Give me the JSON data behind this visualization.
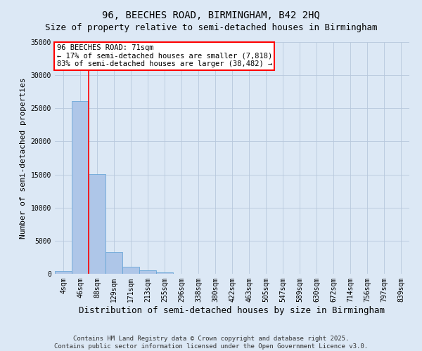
{
  "title_line1": "96, BEECHES ROAD, BIRMINGHAM, B42 2HQ",
  "title_line2": "Size of property relative to semi-detached houses in Birmingham",
  "xlabel": "Distribution of semi-detached houses by size in Birmingham",
  "ylabel": "Number of semi-detached properties",
  "categories": [
    "4sqm",
    "46sqm",
    "88sqm",
    "129sqm",
    "171sqm",
    "213sqm",
    "255sqm",
    "296sqm",
    "338sqm",
    "380sqm",
    "422sqm",
    "463sqm",
    "505sqm",
    "547sqm",
    "589sqm",
    "630sqm",
    "672sqm",
    "714sqm",
    "756sqm",
    "797sqm",
    "839sqm"
  ],
  "values": [
    400,
    26100,
    15100,
    3300,
    1100,
    500,
    200,
    50,
    10,
    5,
    5,
    2,
    2,
    2,
    1,
    1,
    1,
    1,
    1,
    0,
    0
  ],
  "bar_color": "#aec6e8",
  "bar_edge_color": "#5a9fd4",
  "red_line_x": 1,
  "property_label": "96 BEECHES ROAD: 71sqm",
  "smaller_label": "← 17% of semi-detached houses are smaller (7,818)",
  "larger_label": "83% of semi-detached houses are larger (38,482) →",
  "ylim": [
    0,
    35000
  ],
  "yticks": [
    0,
    5000,
    10000,
    15000,
    20000,
    25000,
    30000,
    35000
  ],
  "footer_line1": "Contains HM Land Registry data © Crown copyright and database right 2025.",
  "footer_line2": "Contains public sector information licensed under the Open Government Licence v3.0.",
  "background_color": "#dce8f5",
  "grid_color": "#b8c8dc",
  "title_fontsize": 10,
  "subtitle_fontsize": 9,
  "tick_fontsize": 7,
  "ylabel_fontsize": 8,
  "xlabel_fontsize": 9,
  "footer_fontsize": 6.5,
  "annotation_fontsize": 7.5
}
